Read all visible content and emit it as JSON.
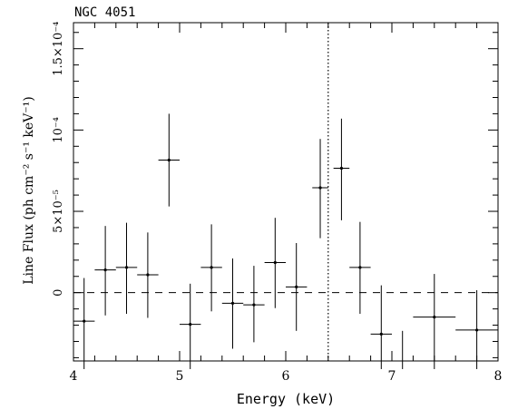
{
  "chart_data": {
    "type": "scatter",
    "title": "NGC 4051",
    "xlabel": "Energy (keV)",
    "ylabel": "Line Flux (ph cm⁻² s⁻¹ keV⁻¹)",
    "xlim": [
      4,
      8
    ],
    "ylim": [
      -4.2e-05,
      0.000166
    ],
    "x_ticks": [
      4,
      5,
      6,
      7,
      8
    ],
    "x_tick_labels": [
      "4",
      "5",
      "6",
      "7",
      "8"
    ],
    "y_ticks": [
      0,
      5e-05,
      0.0001,
      0.00015
    ],
    "y_tick_labels": [
      "0",
      "5×10⁻⁵",
      "10⁻⁴",
      "1.5×10⁻⁴"
    ],
    "reference_lines": [
      {
        "orientation": "horizontal",
        "value": 0,
        "style": "dashed"
      },
      {
        "orientation": "vertical",
        "value": 6.4,
        "style": "dotted"
      }
    ],
    "grid": false,
    "points": [
      {
        "x": 4.1,
        "xerr": 0.1,
        "y": -1.75e-05,
        "ylo": -4.7e-05,
        "yhi": 9e-06
      },
      {
        "x": 4.3,
        "xerr": 0.1,
        "y": 1.4e-05,
        "ylo": -1.4e-05,
        "yhi": 4.1e-05
      },
      {
        "x": 4.5,
        "xerr": 0.1,
        "y": 1.55e-05,
        "ylo": -1.3e-05,
        "yhi": 4.3e-05
      },
      {
        "x": 4.7,
        "xerr": 0.1,
        "y": 1.1e-05,
        "ylo": -1.55e-05,
        "yhi": 3.7e-05
      },
      {
        "x": 4.9,
        "xerr": 0.1,
        "y": 8.15e-05,
        "ylo": 5.3e-05,
        "yhi": 0.00011
      },
      {
        "x": 5.1,
        "xerr": 0.1,
        "y": -1.95e-05,
        "ylo": -4.7e-05,
        "yhi": 5.5e-06
      },
      {
        "x": 5.3,
        "xerr": 0.1,
        "y": 1.55e-05,
        "ylo": -1.15e-05,
        "yhi": 4.2e-05
      },
      {
        "x": 5.5,
        "xerr": 0.1,
        "y": -6.5e-06,
        "ylo": -3.45e-05,
        "yhi": 2.1e-05
      },
      {
        "x": 5.7,
        "xerr": 0.1,
        "y": -7.5e-06,
        "ylo": -3.05e-05,
        "yhi": 1.65e-05
      },
      {
        "x": 5.9,
        "xerr": 0.1,
        "y": 1.85e-05,
        "ylo": -9.5e-06,
        "yhi": 4.6e-05
      },
      {
        "x": 6.1,
        "xerr": 0.1,
        "y": 3.5e-06,
        "ylo": -2.35e-05,
        "yhi": 3.05e-05
      },
      {
        "x": 6.325,
        "xerr": 0.075,
        "y": 6.45e-05,
        "ylo": 3.35e-05,
        "yhi": 9.45e-05
      },
      {
        "x": 6.525,
        "xerr": 0.075,
        "y": 7.65e-05,
        "ylo": 4.45e-05,
        "yhi": 0.000107
      },
      {
        "x": 6.7,
        "xerr": 0.1,
        "y": 1.55e-05,
        "ylo": -1.3e-05,
        "yhi": 4.35e-05
      },
      {
        "x": 6.9,
        "xerr": 0.1,
        "y": -2.55e-05,
        "ylo": -4.7e-05,
        "yhi": 4.5e-06
      },
      {
        "x": 7.1,
        "xerr": 0,
        "y": null,
        "ylo": -4.7e-05,
        "yhi": -2.35e-05
      },
      {
        "x": 7.4,
        "xerr": 0.2,
        "y": -1.5e-05,
        "ylo": -4.7e-05,
        "yhi": 1.15e-05
      },
      {
        "x": 7.8,
        "xerr": 0.2,
        "y": -2.3e-05,
        "ylo": -4.7e-05,
        "yhi": 1.5e-06
      }
    ]
  }
}
